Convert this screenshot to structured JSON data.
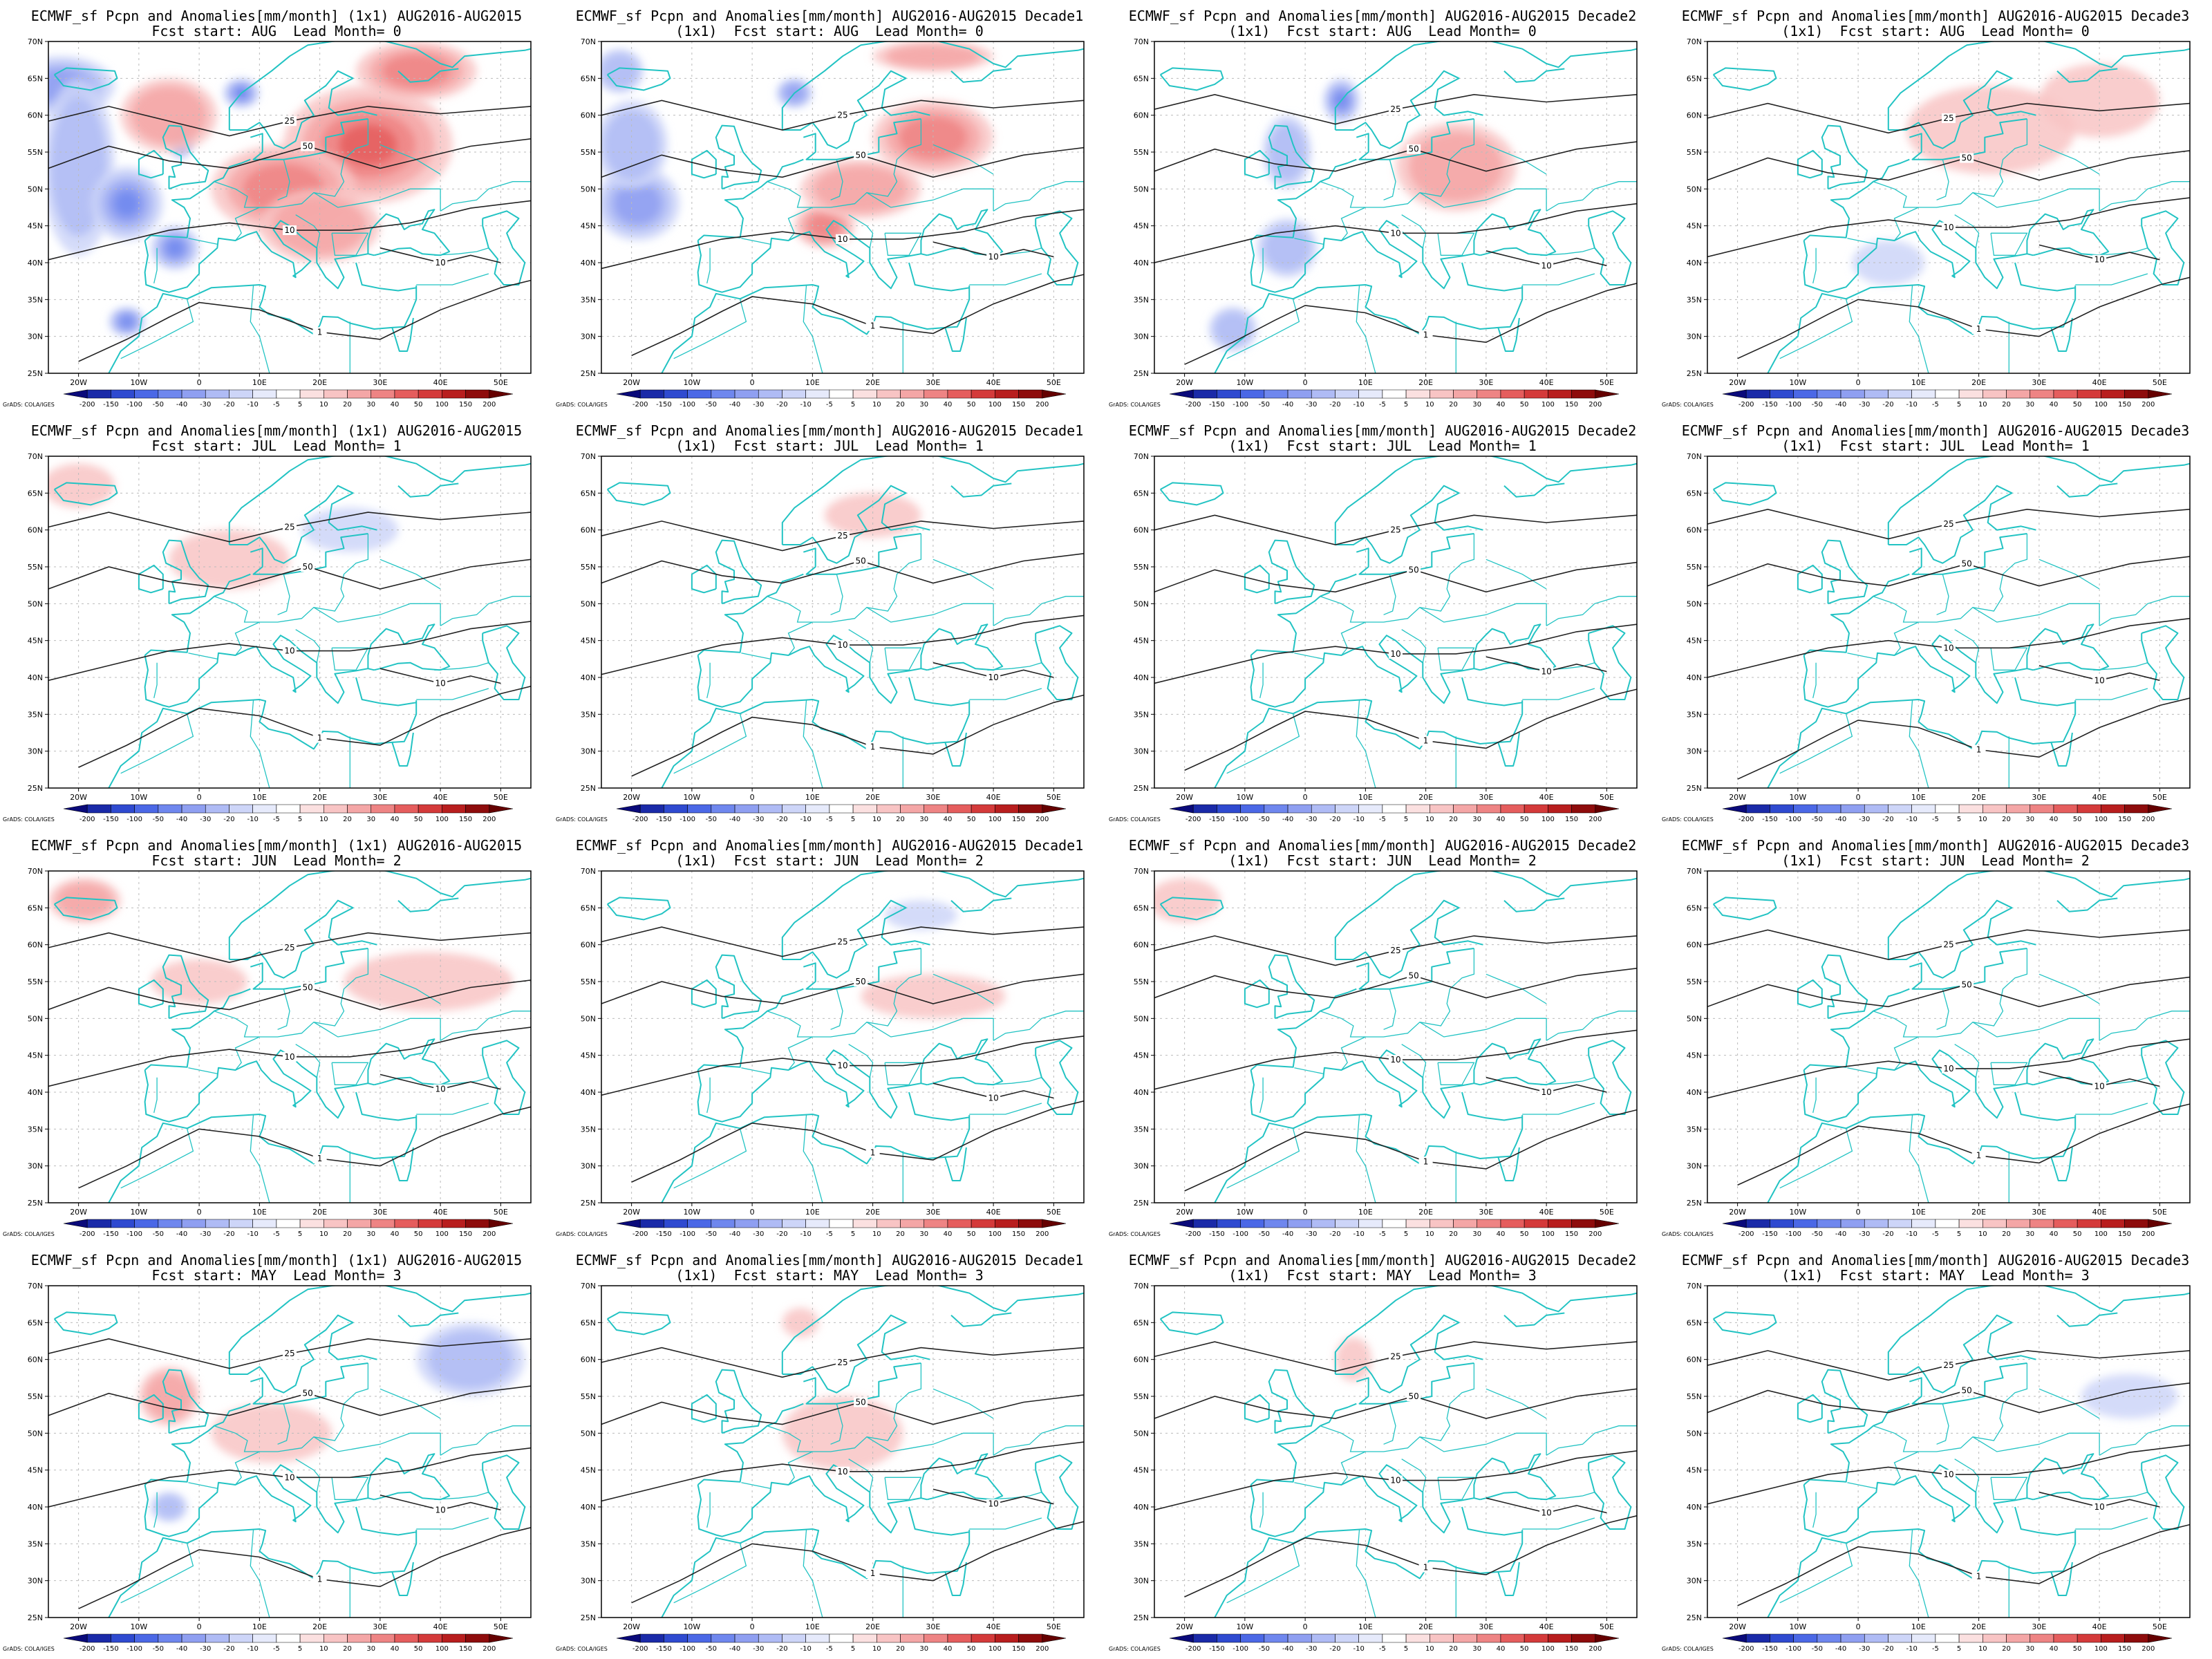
{
  "figure": {
    "source_prefix": "ECMWF_sf",
    "variable": "Pcpn and Anomalies[mm/month]",
    "resolution": "(1x1)",
    "period": "AUG2016-AUG2015",
    "credit": "GrADS: COLA/IGES"
  },
  "columns": [
    {
      "id": "monthly",
      "line1_suffix": "",
      "resolution_on_line2": false
    },
    {
      "id": "decade1",
      "line1_suffix": "Decade1",
      "resolution_on_line2": true
    },
    {
      "id": "decade2",
      "line1_suffix": "Decade2",
      "resolution_on_line2": true
    },
    {
      "id": "decade3",
      "line1_suffix": "Decade3",
      "resolution_on_line2": true
    }
  ],
  "rows": [
    {
      "fcst_start": "AUG",
      "lead_month": 0
    },
    {
      "fcst_start": "JUL",
      "lead_month": 1
    },
    {
      "fcst_start": "JUN",
      "lead_month": 2
    },
    {
      "fcst_start": "MAY",
      "lead_month": 3
    }
  ],
  "panels": [
    {
      "title1": "ECMWF_sf Pcpn and Anomalies[mm/month] (1x1) AUG2016-AUG2015",
      "title2": "Fcst start: AUG  Lead Month= 0"
    },
    {
      "title1": "ECMWF_sf Pcpn and Anomalies[mm/month] AUG2016-AUG2015 Decade1",
      "title2": "(1x1)  Fcst start: AUG  Lead Month= 0"
    },
    {
      "title1": "ECMWF_sf Pcpn and Anomalies[mm/month] AUG2016-AUG2015 Decade2",
      "title2": "(1x1)  Fcst start: AUG  Lead Month= 0"
    },
    {
      "title1": "ECMWF_sf Pcpn and Anomalies[mm/month] AUG2016-AUG2015 Decade3",
      "title2": "(1x1)  Fcst start: AUG  Lead Month= 0"
    },
    {
      "title1": "ECMWF_sf Pcpn and Anomalies[mm/month] (1x1) AUG2016-AUG2015",
      "title2": "Fcst start: JUL  Lead Month= 1"
    },
    {
      "title1": "ECMWF_sf Pcpn and Anomalies[mm/month] AUG2016-AUG2015 Decade1",
      "title2": "(1x1)  Fcst start: JUL  Lead Month= 1"
    },
    {
      "title1": "ECMWF_sf Pcpn and Anomalies[mm/month] AUG2016-AUG2015 Decade2",
      "title2": "(1x1)  Fcst start: JUL  Lead Month= 1"
    },
    {
      "title1": "ECMWF_sf Pcpn and Anomalies[mm/month] AUG2016-AUG2015 Decade3",
      "title2": "(1x1)  Fcst start: JUL  Lead Month= 1"
    },
    {
      "title1": "ECMWF_sf Pcpn and Anomalies[mm/month] (1x1) AUG2016-AUG2015",
      "title2": "Fcst start: JUN  Lead Month= 2"
    },
    {
      "title1": "ECMWF_sf Pcpn and Anomalies[mm/month] AUG2016-AUG2015 Decade1",
      "title2": "(1x1)  Fcst start: JUN  Lead Month= 2"
    },
    {
      "title1": "ECMWF_sf Pcpn and Anomalies[mm/month] AUG2016-AUG2015 Decade2",
      "title2": "(1x1)  Fcst start: JUN  Lead Month= 2"
    },
    {
      "title1": "ECMWF_sf Pcpn and Anomalies[mm/month] AUG2016-AUG2015 Decade3",
      "title2": "(1x1)  Fcst start: JUN  Lead Month= 2"
    },
    {
      "title1": "ECMWF_sf Pcpn and Anomalies[mm/month] (1x1) AUG2016-AUG2015",
      "title2": "Fcst start: MAY  Lead Month= 3"
    },
    {
      "title1": "ECMWF_sf Pcpn and Anomalies[mm/month] AUG2016-AUG2015 Decade1",
      "title2": "(1x1)  Fcst start: MAY  Lead Month= 3"
    },
    {
      "title1": "ECMWF_sf Pcpn and Anomalies[mm/month] AUG2016-AUG2015 Decade2",
      "title2": "(1x1)  Fcst start: MAY  Lead Month= 3"
    },
    {
      "title1": "ECMWF_sf Pcpn and Anomalies[mm/month] AUG2016-AUG2015 Decade3",
      "title2": "(1x1)  Fcst start: MAY  Lead Month= 3"
    }
  ],
  "map": {
    "lon_range": [
      -25,
      55
    ],
    "lat_range": [
      25,
      70
    ],
    "lat_ticks": [
      "70N",
      "65N",
      "60N",
      "55N",
      "50N",
      "45N",
      "40N",
      "35N",
      "30N",
      "25N"
    ],
    "lon_ticks": [
      "20W",
      "10W",
      "0",
      "10E",
      "20E",
      "30E",
      "40E",
      "50E"
    ],
    "coast_color": "#22c3c3",
    "contour_color": "#222222",
    "grid_color": "#bbbbbb"
  },
  "colorbar": {
    "labels": [
      "-200",
      "-150",
      "-100",
      "-50",
      "-40",
      "-30",
      "-20",
      "-10",
      "-5",
      "5",
      "10",
      "20",
      "30",
      "40",
      "50",
      "100",
      "150",
      "200"
    ],
    "colors": [
      "#0a0a7a",
      "#1a2aa8",
      "#2f4ad0",
      "#4b68e6",
      "#6f87ee",
      "#8f9ff1",
      "#afbbf5",
      "#cdd5f8",
      "#e6eafb",
      "#ffffff",
      "#fbe0e0",
      "#f8c4c4",
      "#f4a6a6",
      "#ee8484",
      "#e55d5d",
      "#d43a3a",
      "#b81e1e",
      "#8e0c0c",
      "#650000"
    ]
  },
  "contour_levels": [
    "1",
    "10",
    "25",
    "50",
    "100"
  ],
  "anomaly_fields": [
    {
      "label": "AUG lead 0 monthly",
      "features": [
        {
          "sign": "neg",
          "intensity": 3,
          "lon": -23,
          "lat": 64,
          "rx": 9,
          "ry": 4
        },
        {
          "sign": "neg",
          "intensity": 2,
          "lon": -20,
          "lat": 53,
          "rx": 6,
          "ry": 12
        },
        {
          "sign": "neg",
          "intensity": 4,
          "lon": -12,
          "lat": 48,
          "rx": 6,
          "ry": 5
        },
        {
          "sign": "neg",
          "intensity": 5,
          "lon": 7,
          "lat": 63,
          "rx": 3,
          "ry": 2
        },
        {
          "sign": "neg",
          "intensity": 4,
          "lon": -4,
          "lat": 42,
          "rx": 4,
          "ry": 3
        },
        {
          "sign": "neg",
          "intensity": 4,
          "lon": -12,
          "lat": 32,
          "rx": 3,
          "ry": 2
        },
        {
          "sign": "neg",
          "intensity": 3,
          "lon": -3,
          "lat": 57,
          "rx": 2,
          "ry": 3
        },
        {
          "sign": "pos",
          "intensity": 4,
          "lon": 28,
          "lat": 56,
          "rx": 14,
          "ry": 8
        },
        {
          "sign": "pos",
          "intensity": 3,
          "lon": 14,
          "lat": 50,
          "rx": 12,
          "ry": 6
        },
        {
          "sign": "pos",
          "intensity": 3,
          "lon": 36,
          "lat": 66,
          "rx": 10,
          "ry": 4
        },
        {
          "sign": "pos",
          "intensity": 2,
          "lon": 20,
          "lat": 45,
          "rx": 10,
          "ry": 5
        },
        {
          "sign": "pos",
          "intensity": 2,
          "lon": -5,
          "lat": 60,
          "rx": 8,
          "ry": 5
        }
      ]
    },
    {
      "label": "AUG lead 0 decade1",
      "features": [
        {
          "sign": "neg",
          "intensity": 3,
          "lon": -19,
          "lat": 48,
          "rx": 7,
          "ry": 5
        },
        {
          "sign": "neg",
          "intensity": 2,
          "lon": -20,
          "lat": 56,
          "rx": 6,
          "ry": 6
        },
        {
          "sign": "neg",
          "intensity": 3,
          "lon": 7,
          "lat": 63,
          "rx": 3,
          "ry": 2
        },
        {
          "sign": "neg",
          "intensity": 2,
          "lon": -22,
          "lat": 66,
          "rx": 4,
          "ry": 3
        },
        {
          "sign": "pos",
          "intensity": 3,
          "lon": 30,
          "lat": 57,
          "rx": 10,
          "ry": 5
        },
        {
          "sign": "pos",
          "intensity": 3,
          "lon": 12,
          "lat": 45,
          "rx": 5,
          "ry": 3
        },
        {
          "sign": "pos",
          "intensity": 2,
          "lon": 18,
          "lat": 50,
          "rx": 10,
          "ry": 4
        },
        {
          "sign": "pos",
          "intensity": 2,
          "lon": 30,
          "lat": 68,
          "rx": 10,
          "ry": 2
        }
      ]
    },
    {
      "label": "AUG lead 0 decade2",
      "features": [
        {
          "sign": "neg",
          "intensity": 4,
          "lon": 6,
          "lat": 62,
          "rx": 3,
          "ry": 3
        },
        {
          "sign": "neg",
          "intensity": 2,
          "lon": -3,
          "lat": 55,
          "rx": 4,
          "ry": 5
        },
        {
          "sign": "neg",
          "intensity": 2,
          "lon": -3,
          "lat": 42,
          "rx": 5,
          "ry": 4
        },
        {
          "sign": "neg",
          "intensity": 2,
          "lon": -12,
          "lat": 31,
          "rx": 4,
          "ry": 3
        },
        {
          "sign": "pos",
          "intensity": 2,
          "lon": 25,
          "lat": 53,
          "rx": 10,
          "ry": 6
        }
      ]
    },
    {
      "label": "AUG lead 0 decade3",
      "features": [
        {
          "sign": "pos",
          "intensity": 1,
          "lon": 22,
          "lat": 58,
          "rx": 14,
          "ry": 6
        },
        {
          "sign": "pos",
          "intensity": 1,
          "lon": 40,
          "lat": 62,
          "rx": 10,
          "ry": 5
        },
        {
          "sign": "neg",
          "intensity": 1,
          "lon": 5,
          "lat": 40,
          "rx": 6,
          "ry": 3
        }
      ]
    },
    {
      "label": "JUL lead 1 monthly",
      "features": [
        {
          "sign": "pos",
          "intensity": 1,
          "lon": -20,
          "lat": 66,
          "rx": 6,
          "ry": 3
        },
        {
          "sign": "pos",
          "intensity": 1,
          "lon": 5,
          "lat": 56,
          "rx": 10,
          "ry": 4
        },
        {
          "sign": "neg",
          "intensity": 1,
          "lon": 25,
          "lat": 60,
          "rx": 8,
          "ry": 3
        }
      ]
    },
    {
      "label": "JUL lead 1 decade1",
      "features": [
        {
          "sign": "pos",
          "intensity": 1,
          "lon": 20,
          "lat": 62,
          "rx": 8,
          "ry": 3
        }
      ]
    },
    {
      "label": "JUL lead 1 decade2",
      "features": []
    },
    {
      "label": "JUL lead 1 decade3",
      "features": []
    },
    {
      "label": "JUN lead 2 monthly",
      "features": [
        {
          "sign": "pos",
          "intensity": 2,
          "lon": -19,
          "lat": 66,
          "rx": 6,
          "ry": 3
        },
        {
          "sign": "pos",
          "intensity": 1,
          "lon": 38,
          "lat": 55,
          "rx": 14,
          "ry": 4
        },
        {
          "sign": "pos",
          "intensity": 1,
          "lon": 0,
          "lat": 55,
          "rx": 8,
          "ry": 3
        }
      ]
    },
    {
      "label": "JUN lead 2 decade1",
      "features": [
        {
          "sign": "pos",
          "intensity": 1,
          "lon": 30,
          "lat": 53,
          "rx": 12,
          "ry": 3
        },
        {
          "sign": "neg",
          "intensity": 1,
          "lon": 28,
          "lat": 64,
          "rx": 6,
          "ry": 2
        }
      ]
    },
    {
      "label": "JUN lead 2 decade2",
      "features": [
        {
          "sign": "pos",
          "intensity": 1,
          "lon": -20,
          "lat": 66,
          "rx": 6,
          "ry": 3
        }
      ]
    },
    {
      "label": "JUN lead 2 decade3",
      "features": []
    },
    {
      "label": "MAY lead 3 monthly",
      "features": [
        {
          "sign": "neg",
          "intensity": 2,
          "lon": 45,
          "lat": 60,
          "rx": 9,
          "ry": 5
        },
        {
          "sign": "pos",
          "intensity": 2,
          "lon": -5,
          "lat": 55,
          "rx": 5,
          "ry": 4
        },
        {
          "sign": "pos",
          "intensity": 1,
          "lon": 12,
          "lat": 50,
          "rx": 10,
          "ry": 4
        },
        {
          "sign": "neg",
          "intensity": 2,
          "lon": -5,
          "lat": 40,
          "rx": 3,
          "ry": 2
        }
      ]
    },
    {
      "label": "MAY lead 3 decade1",
      "features": [
        {
          "sign": "pos",
          "intensity": 1,
          "lon": 15,
          "lat": 50,
          "rx": 10,
          "ry": 5
        },
        {
          "sign": "pos",
          "intensity": 1,
          "lon": 8,
          "lat": 65,
          "rx": 3,
          "ry": 2
        }
      ]
    },
    {
      "label": "MAY lead 3 decade2",
      "features": [
        {
          "sign": "pos",
          "intensity": 1,
          "lon": 8,
          "lat": 60,
          "rx": 3,
          "ry": 3
        }
      ]
    },
    {
      "label": "MAY lead 3 decade3",
      "features": [
        {
          "sign": "neg",
          "intensity": 1,
          "lon": 45,
          "lat": 55,
          "rx": 8,
          "ry": 3
        }
      ]
    }
  ]
}
